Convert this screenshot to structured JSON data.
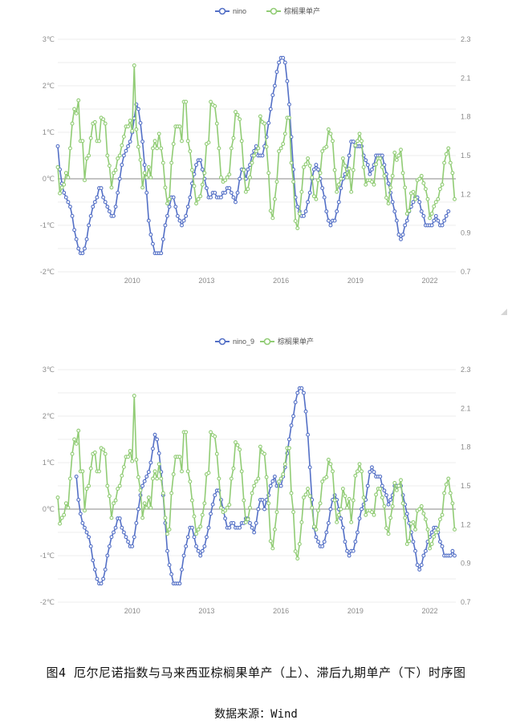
{
  "charts": [
    {
      "id": "top",
      "chart_data": {
        "type": "line",
        "title": "",
        "legend": [
          "nino",
          "棕榈果单产"
        ],
        "legend_position": "top-center",
        "x_start": "2007-01",
        "x_ticks": [
          "2010",
          "2013",
          "2016",
          "2019",
          "2022"
        ],
        "y_left_ticks": [
          "3℃",
          "2℃",
          "1℃",
          "0℃",
          "-1℃",
          "-2℃"
        ],
        "y_left_range": [
          -2,
          3
        ],
        "y_right_ticks": [
          "2.3",
          "2.1",
          "1.8",
          "1.5",
          "1.2",
          "0.9",
          "0.7"
        ],
        "y_right_range": [
          0.7,
          2.3
        ],
        "grid": true,
        "series": [
          {
            "name": "nino",
            "axis": "left",
            "color": "#5470c6",
            "values": [
              0.7,
              0.2,
              -0.1,
              -0.3,
              -0.4,
              -0.5,
              -0.6,
              -0.8,
              -1.1,
              -1.3,
              -1.5,
              -1.6,
              -1.6,
              -1.5,
              -1.3,
              -1.0,
              -0.8,
              -0.6,
              -0.5,
              -0.4,
              -0.2,
              -0.2,
              -0.4,
              -0.5,
              -0.6,
              -0.7,
              -0.8,
              -0.8,
              -0.6,
              -0.3,
              0.0,
              0.3,
              0.5,
              0.6,
              0.7,
              0.8,
              1.0,
              1.3,
              1.6,
              1.5,
              1.2,
              0.8,
              0.3,
              -0.3,
              -0.9,
              -1.2,
              -1.4,
              -1.6,
              -1.6,
              -1.6,
              -1.6,
              -1.3,
              -1.0,
              -0.8,
              -0.6,
              -0.4,
              -0.4,
              -0.6,
              -0.8,
              -0.9,
              -1.0,
              -0.9,
              -0.8,
              -0.6,
              -0.4,
              -0.1,
              0.1,
              0.3,
              0.4,
              0.4,
              0.2,
              0.0,
              -0.2,
              -0.4,
              -0.4,
              -0.3,
              -0.3,
              -0.4,
              -0.4,
              -0.4,
              -0.3,
              -0.3,
              -0.2,
              -0.2,
              -0.3,
              -0.4,
              -0.5,
              -0.3,
              0.0,
              0.2,
              0.2,
              0.0,
              0.2,
              0.3,
              0.5,
              0.6,
              0.7,
              0.5,
              0.5,
              0.5,
              0.7,
              0.9,
              1.2,
              1.5,
              1.8,
              2.0,
              2.3,
              2.5,
              2.6,
              2.6,
              2.5,
              2.1,
              1.6,
              0.9,
              0.2,
              -0.4,
              -0.6,
              -0.7,
              -0.8,
              -0.8,
              -0.7,
              -0.5,
              -0.3,
              0.0,
              0.2,
              0.3,
              0.2,
              0.0,
              -0.2,
              -0.4,
              -0.7,
              -0.9,
              -1.0,
              -0.9,
              -0.9,
              -0.7,
              -0.5,
              -0.2,
              0.0,
              0.1,
              0.2,
              0.5,
              0.8,
              0.8,
              0.7,
              0.7,
              0.7,
              0.7,
              0.5,
              0.4,
              0.3,
              0.1,
              0.2,
              0.3,
              0.5,
              0.5,
              0.5,
              0.5,
              0.3,
              0.1,
              -0.1,
              -0.3,
              -0.5,
              -0.7,
              -0.9,
              -1.2,
              -1.3,
              -1.2,
              -1.0,
              -0.9,
              -0.7,
              -0.6,
              -0.5,
              -0.4,
              -0.4,
              -0.5,
              -0.7,
              -0.8,
              -1.0,
              -1.0,
              -1.0,
              -1.0,
              -0.9,
              -0.8,
              -0.9,
              -1.0,
              -1.0,
              -0.9,
              -0.8,
              -0.7
            ]
          },
          {
            "name": "棕榈果单产",
            "axis": "right",
            "color": "#91cc75",
            "values": [
              1.42,
              1.24,
              1.28,
              1.3,
              1.38,
              1.35,
              1.55,
              1.72,
              1.82,
              1.79,
              1.88,
              1.6,
              1.6,
              1.33,
              1.48,
              1.5,
              1.62,
              1.72,
              1.73,
              1.6,
              1.6,
              1.76,
              1.75,
              1.72,
              1.5,
              1.43,
              1.28,
              1.38,
              1.4,
              1.48,
              1.5,
              1.57,
              1.63,
              1.7,
              1.7,
              1.74,
              1.67,
              2.12,
              1.68,
              1.56,
              1.47,
              1.28,
              1.38,
              1.35,
              1.42,
              1.35,
              1.55,
              1.6,
              1.55,
              1.65,
              1.55,
              1.45,
              1.28,
              1.17,
              1.2,
              1.45,
              1.58,
              1.7,
              1.7,
              1.7,
              1.6,
              1.87,
              1.87,
              1.6,
              1.53,
              1.4,
              1.29,
              1.17,
              1.2,
              1.22,
              1.3,
              1.38,
              1.58,
              1.59,
              1.87,
              1.85,
              1.84,
              1.72,
              1.55,
              1.35,
              1.32,
              1.33,
              1.35,
              1.37,
              1.55,
              1.62,
              1.8,
              1.78,
              1.75,
              1.6,
              1.4,
              1.25,
              1.27,
              1.35,
              1.45,
              1.5,
              1.53,
              1.55,
              1.77,
              1.73,
              1.72,
              1.56,
              1.38,
              1.12,
              1.07,
              1.2,
              1.32,
              1.53,
              1.55,
              1.58,
              1.65,
              1.76,
              1.76,
              1.45,
              1.32,
              1.05,
              1.0,
              1.1,
              1.25,
              1.42,
              1.44,
              1.48,
              1.43,
              1.35,
              1.22,
              1.2,
              1.33,
              1.38,
              1.53,
              1.55,
              1.56,
              1.68,
              1.65,
              1.6,
              1.4,
              1.25,
              1.3,
              1.34,
              1.48,
              1.43,
              1.35,
              1.41,
              1.25,
              1.4,
              1.57,
              1.6,
              1.65,
              1.6,
              1.42,
              1.3,
              1.33,
              1.33,
              1.32,
              1.3,
              1.44,
              1.48,
              1.48,
              1.42,
              1.36,
              1.21,
              1.17,
              1.28,
              1.36,
              1.52,
              1.47,
              1.5,
              1.54,
              1.38,
              1.28,
              1.1,
              1.12,
              1.24,
              1.25,
              1.2,
              1.33,
              1.34,
              1.36,
              1.31,
              1.27,
              1.2,
              1.07,
              1.1,
              1.15,
              1.18,
              1.2,
              1.27,
              1.3,
              1.45,
              1.51,
              1.55,
              1.45,
              1.38,
              1.2
            ]
          }
        ]
      }
    },
    {
      "id": "bottom",
      "chart_data": {
        "type": "line",
        "title": "",
        "legend": [
          "nino_9",
          "棕榈果单产"
        ],
        "legend_position": "top-center",
        "x_start": "2007-01",
        "x_ticks": [
          "2010",
          "2013",
          "2016",
          "2019",
          "2022"
        ],
        "y_left_ticks": [
          "3℃",
          "2℃",
          "1℃",
          "0℃",
          "-1℃",
          "-2℃"
        ],
        "y_left_range": [
          -2,
          3
        ],
        "y_right_ticks": [
          "2.3",
          "2.1",
          "1.8",
          "1.5",
          "1.2",
          "0.9",
          "0.7"
        ],
        "y_right_range": [
          0.7,
          2.3
        ],
        "grid": true,
        "series": [
          {
            "name": "nino_9",
            "axis": "left",
            "color": "#5470c6",
            "offset_months": 9,
            "values": [
              0.7,
              0.2,
              -0.1,
              -0.3,
              -0.4,
              -0.5,
              -0.6,
              -0.8,
              -1.1,
              -1.3,
              -1.5,
              -1.6,
              -1.6,
              -1.5,
              -1.3,
              -1.0,
              -0.8,
              -0.6,
              -0.5,
              -0.4,
              -0.2,
              -0.2,
              -0.4,
              -0.5,
              -0.6,
              -0.7,
              -0.8,
              -0.8,
              -0.6,
              -0.3,
              0.0,
              0.3,
              0.5,
              0.6,
              0.7,
              0.8,
              1.0,
              1.3,
              1.6,
              1.5,
              1.2,
              0.8,
              0.3,
              -0.3,
              -0.9,
              -1.2,
              -1.4,
              -1.6,
              -1.6,
              -1.6,
              -1.6,
              -1.3,
              -1.0,
              -0.8,
              -0.6,
              -0.4,
              -0.4,
              -0.6,
              -0.8,
              -0.9,
              -1.0,
              -0.9,
              -0.8,
              -0.6,
              -0.4,
              -0.1,
              0.1,
              0.3,
              0.4,
              0.4,
              0.2,
              0.0,
              -0.2,
              -0.4,
              -0.4,
              -0.3,
              -0.3,
              -0.4,
              -0.4,
              -0.4,
              -0.3,
              -0.3,
              -0.2,
              -0.2,
              -0.3,
              -0.4,
              -0.5,
              -0.3,
              0.0,
              0.2,
              0.2,
              0.0,
              0.2,
              0.3,
              0.5,
              0.6,
              0.7,
              0.5,
              0.5,
              0.5,
              0.7,
              0.9,
              1.2,
              1.5,
              1.8,
              2.0,
              2.3,
              2.5,
              2.6,
              2.6,
              2.5,
              2.1,
              1.6,
              0.9,
              0.2,
              -0.4,
              -0.6,
              -0.7,
              -0.8,
              -0.8,
              -0.7,
              -0.5,
              -0.3,
              0.0,
              0.2,
              0.3,
              0.2,
              0.0,
              -0.2,
              -0.4,
              -0.7,
              -0.9,
              -1.0,
              -0.9,
              -0.9,
              -0.7,
              -0.5,
              -0.2,
              0.0,
              0.1,
              0.2,
              0.5,
              0.8,
              0.9,
              0.8,
              0.7,
              0.7,
              0.7,
              0.5,
              0.4,
              0.3,
              0.1,
              0.2,
              0.3,
              0.5,
              0.5,
              0.5,
              0.5,
              0.3,
              0.1,
              -0.1,
              -0.3,
              -0.5,
              -0.7,
              -0.9,
              -1.2,
              -1.3,
              -1.2,
              -1.0,
              -0.9,
              -0.7,
              -0.6,
              -0.5,
              -0.4,
              -0.4,
              -0.5,
              -0.7,
              -0.8,
              -1.0,
              -1.0,
              -1.0,
              -1.0,
              -0.9,
              -1.0,
              -1.1
            ]
          },
          {
            "name": "棕榈果单产",
            "axis": "right",
            "color": "#91cc75",
            "values": [
              1.42,
              1.24,
              1.28,
              1.3,
              1.38,
              1.35,
              1.55,
              1.72,
              1.82,
              1.79,
              1.88,
              1.6,
              1.6,
              1.33,
              1.48,
              1.5,
              1.62,
              1.72,
              1.73,
              1.6,
              1.6,
              1.76,
              1.75,
              1.72,
              1.5,
              1.43,
              1.28,
              1.38,
              1.4,
              1.48,
              1.5,
              1.57,
              1.63,
              1.7,
              1.7,
              1.74,
              1.67,
              2.12,
              1.68,
              1.56,
              1.47,
              1.28,
              1.38,
              1.35,
              1.42,
              1.35,
              1.55,
              1.6,
              1.55,
              1.65,
              1.55,
              1.45,
              1.28,
              1.17,
              1.2,
              1.45,
              1.58,
              1.7,
              1.7,
              1.7,
              1.6,
              1.87,
              1.87,
              1.6,
              1.53,
              1.4,
              1.29,
              1.17,
              1.2,
              1.22,
              1.3,
              1.38,
              1.58,
              1.59,
              1.87,
              1.85,
              1.84,
              1.72,
              1.55,
              1.35,
              1.32,
              1.33,
              1.35,
              1.37,
              1.55,
              1.62,
              1.8,
              1.78,
              1.75,
              1.6,
              1.4,
              1.25,
              1.27,
              1.35,
              1.45,
              1.5,
              1.53,
              1.55,
              1.77,
              1.73,
              1.72,
              1.56,
              1.38,
              1.12,
              1.07,
              1.2,
              1.32,
              1.53,
              1.55,
              1.58,
              1.65,
              1.76,
              1.76,
              1.45,
              1.32,
              1.05,
              1.0,
              1.1,
              1.25,
              1.42,
              1.44,
              1.48,
              1.43,
              1.35,
              1.22,
              1.2,
              1.33,
              1.38,
              1.53,
              1.55,
              1.56,
              1.68,
              1.65,
              1.6,
              1.4,
              1.25,
              1.3,
              1.34,
              1.48,
              1.43,
              1.35,
              1.41,
              1.25,
              1.4,
              1.57,
              1.6,
              1.65,
              1.6,
              1.42,
              1.3,
              1.33,
              1.33,
              1.32,
              1.3,
              1.44,
              1.48,
              1.48,
              1.42,
              1.36,
              1.21,
              1.17,
              1.28,
              1.36,
              1.52,
              1.47,
              1.5,
              1.54,
              1.38,
              1.28,
              1.1,
              1.12,
              1.24,
              1.25,
              1.2,
              1.33,
              1.34,
              1.36,
              1.31,
              1.27,
              1.2,
              1.07,
              1.1,
              1.15,
              1.18,
              1.2,
              1.27,
              1.3,
              1.45,
              1.51,
              1.55,
              1.45,
              1.38,
              1.2
            ]
          }
        ]
      }
    }
  ],
  "caption": {
    "title": "图4 厄尔尼诺指数与马来西亚棕榈果单产（上）、滞后九期单产（下）时序图",
    "source": "数据来源：Wind"
  }
}
